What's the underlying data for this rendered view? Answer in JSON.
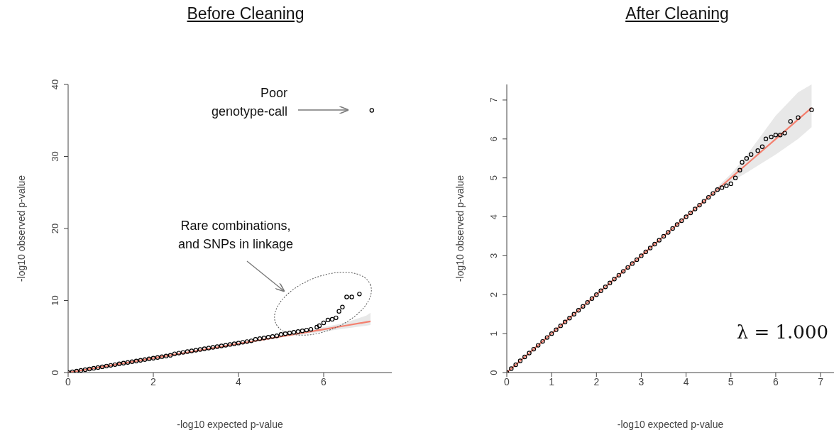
{
  "chart_data": [
    {
      "type": "scatter",
      "title": "Before Cleaning",
      "xlabel": "-log10 expected p-value",
      "ylabel": "-log10 observed p-value",
      "xlim": [
        0,
        7.6
      ],
      "ylim": [
        0,
        40
      ],
      "xticks": [
        0,
        2,
        4,
        6
      ],
      "yticks": [
        0,
        10,
        20,
        30,
        40
      ],
      "legend": false,
      "annotations": [
        "Poor genotype-call",
        "Rare combinations, and SNPs in linkage"
      ],
      "series": [
        {
          "type": "scatter",
          "color": "#000000",
          "marker": "circle",
          "x": [
            0,
            0.1,
            0.2,
            0.3,
            0.4,
            0.5,
            0.6,
            0.7,
            0.8,
            0.9,
            1,
            1.1,
            1.2,
            1.3,
            1.4,
            1.5,
            1.6,
            1.7,
            1.8,
            1.9,
            2,
            2.1,
            2.2,
            2.3,
            2.4,
            2.5,
            2.6,
            2.7,
            2.8,
            2.9,
            3,
            3.1,
            3.2,
            3.3,
            3.4,
            3.5,
            3.6,
            3.7,
            3.8,
            3.9,
            4,
            4.1,
            4.2,
            4.3,
            4.4,
            4.5,
            4.6,
            4.7,
            4.8,
            4.9,
            5,
            5.1,
            5.2,
            5.3,
            5.4,
            5.5,
            5.6,
            5.7,
            5.84,
            5.9,
            6,
            6.1,
            6.2,
            6.29,
            6.36,
            6.44,
            6.54,
            6.66,
            6.84,
            7.13
          ],
          "values": [
            0,
            0.1,
            0.2,
            0.3,
            0.4,
            0.5,
            0.6,
            0.7,
            0.8,
            0.9,
            1,
            1.1,
            1.2,
            1.3,
            1.4,
            1.5,
            1.6,
            1.7,
            1.8,
            1.9,
            2,
            2.1,
            2.2,
            2.3,
            2.4,
            2.6,
            2.7,
            2.8,
            2.9,
            3,
            3.1,
            3.2,
            3.3,
            3.4,
            3.5,
            3.6,
            3.7,
            3.8,
            3.9,
            4,
            4.1,
            4.2,
            4.3,
            4.4,
            4.6,
            4.7,
            4.8,
            4.9,
            5,
            5.1,
            5.3,
            5.4,
            5.5,
            5.6,
            5.7,
            5.8,
            5.9,
            6,
            6.3,
            6.5,
            6.9,
            7.3,
            7.4,
            7.6,
            8.5,
            9.1,
            10.5,
            10.5,
            10.9,
            36.4
          ]
        },
        {
          "type": "line",
          "color": "#f4806f",
          "marker": "none",
          "x": [
            0,
            1,
            2,
            3,
            4,
            5,
            5.5,
            6,
            6.5,
            7,
            7.1
          ],
          "values": [
            0,
            1,
            2,
            3,
            4,
            5,
            5.5,
            6,
            6.5,
            7,
            7.1
          ],
          "lower": [
            0,
            1,
            2,
            3,
            4,
            4.9,
            5.3,
            5.7,
            6.1,
            6.5,
            6.6
          ],
          "upper": [
            0,
            1,
            2,
            3,
            4,
            5.1,
            5.7,
            6.3,
            6.9,
            7.9,
            8.3
          ]
        }
      ]
    },
    {
      "type": "scatter",
      "title": "After Cleaning",
      "xlabel": "-log10 expected p-value",
      "ylabel": "-log10 observed p-value",
      "xlim": [
        0,
        7.3
      ],
      "ylim": [
        0,
        7.4
      ],
      "xticks": [
        0,
        1,
        2,
        3,
        4,
        5,
        6,
        7
      ],
      "yticks": [
        0,
        1,
        2,
        3,
        4,
        5,
        6,
        7
      ],
      "legend": false,
      "annotations": [
        "λ = 1.000"
      ],
      "series": [
        {
          "type": "scatter",
          "color": "#000000",
          "marker": "circle",
          "x": [
            0,
            0.1,
            0.2,
            0.3,
            0.4,
            0.5,
            0.6,
            0.7,
            0.8,
            0.9,
            1,
            1.1,
            1.2,
            1.3,
            1.4,
            1.5,
            1.6,
            1.7,
            1.8,
            1.9,
            2,
            2.1,
            2.2,
            2.3,
            2.4,
            2.5,
            2.6,
            2.7,
            2.8,
            2.9,
            3,
            3.1,
            3.2,
            3.3,
            3.4,
            3.5,
            3.6,
            3.7,
            3.8,
            3.9,
            4,
            4.1,
            4.2,
            4.3,
            4.4,
            4.5,
            4.6,
            4.7,
            4.8,
            4.9,
            5,
            5.1,
            5.2,
            5.25,
            5.35,
            5.45,
            5.6,
            5.7,
            5.78,
            5.9,
            6,
            6.1,
            6.2,
            6.33,
            6.5,
            6.8
          ],
          "values": [
            0,
            0.1,
            0.2,
            0.3,
            0.4,
            0.5,
            0.6,
            0.7,
            0.8,
            0.9,
            1,
            1.1,
            1.2,
            1.3,
            1.4,
            1.5,
            1.6,
            1.7,
            1.8,
            1.9,
            2,
            2.1,
            2.2,
            2.3,
            2.4,
            2.5,
            2.6,
            2.7,
            2.8,
            2.9,
            3,
            3.1,
            3.2,
            3.3,
            3.4,
            3.5,
            3.6,
            3.7,
            3.8,
            3.9,
            4,
            4.1,
            4.2,
            4.3,
            4.4,
            4.5,
            4.6,
            4.7,
            4.75,
            4.8,
            4.85,
            5,
            5.2,
            5.4,
            5.5,
            5.6,
            5.7,
            5.8,
            6,
            6.05,
            6.1,
            6.1,
            6.15,
            6.45,
            6.55,
            6.75
          ]
        },
        {
          "type": "line",
          "color": "#f4806f",
          "marker": "none",
          "x": [
            0,
            1,
            2,
            3,
            4,
            5,
            5.3,
            6,
            6.5,
            6.8
          ],
          "values": [
            0,
            1,
            2,
            3,
            4,
            5,
            5.3,
            6,
            6.5,
            6.8
          ],
          "lower": [
            0,
            1,
            2,
            3,
            4,
            4.9,
            5.1,
            5.6,
            6.0,
            6.3
          ],
          "upper": [
            0,
            1,
            2,
            3,
            4,
            5.1,
            5.5,
            6.6,
            7.2,
            7.4
          ]
        }
      ]
    }
  ]
}
